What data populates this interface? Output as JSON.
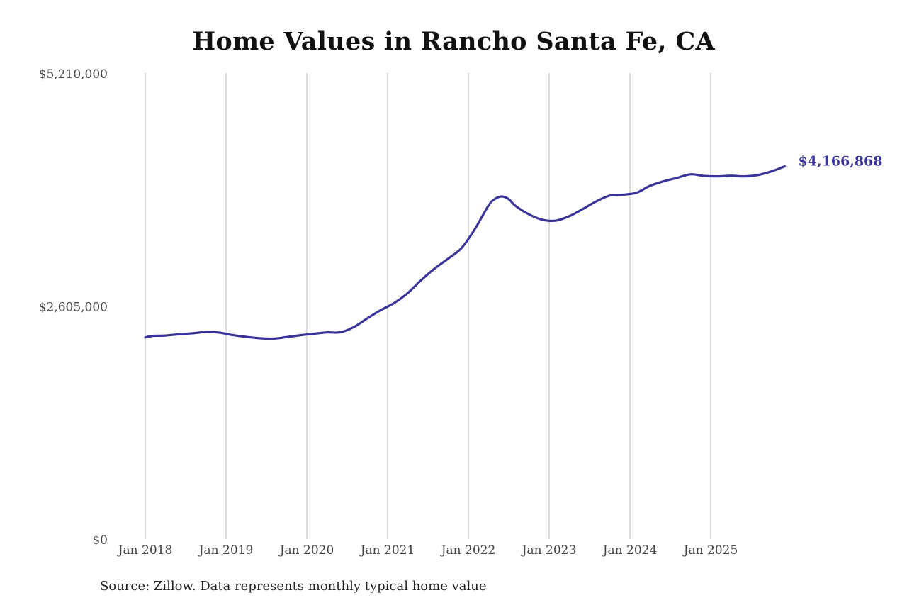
{
  "chart_data": {
    "type": "line",
    "title": "Home Values in Rancho Santa Fe, CA",
    "xlabel": "",
    "ylabel": "",
    "ylim": [
      0,
      5210000
    ],
    "y_ticks": [
      {
        "value": 0,
        "label": "$0"
      },
      {
        "value": 2605000,
        "label": "$2,605,000"
      },
      {
        "value": 5210000,
        "label": "$5,210,000"
      }
    ],
    "x_ticks": [
      {
        "year": 2018,
        "label": "Jan 2018"
      },
      {
        "year": 2019,
        "label": "Jan 2019"
      },
      {
        "year": 2020,
        "label": "Jan 2020"
      },
      {
        "year": 2021,
        "label": "Jan 2021"
      },
      {
        "year": 2022,
        "label": "Jan 2022"
      },
      {
        "year": 2023,
        "label": "Jan 2023"
      },
      {
        "year": 2024,
        "label": "Jan 2024"
      },
      {
        "year": 2025,
        "label": "Jan 2025"
      }
    ],
    "xlim": [
      "2018-01",
      "2025-12"
    ],
    "grid": "vertical",
    "series_color": "#3a3399",
    "series": [
      {
        "x": [
          "2018-01",
          "2018-02",
          "2018-04",
          "2018-06",
          "2018-08",
          "2018-10",
          "2018-12",
          "2019-02",
          "2019-04",
          "2019-06",
          "2019-08",
          "2019-10",
          "2019-12",
          "2020-02",
          "2020-04",
          "2020-06",
          "2020-08",
          "2020-10",
          "2020-12",
          "2021-02",
          "2021-04",
          "2021-06",
          "2021-08",
          "2021-10",
          "2021-12",
          "2022-02",
          "2022-04",
          "2022-05",
          "2022-06",
          "2022-07",
          "2022-08",
          "2022-10",
          "2022-12",
          "2023-02",
          "2023-04",
          "2023-06",
          "2023-08",
          "2023-10",
          "2023-12",
          "2024-02",
          "2024-04",
          "2024-06",
          "2024-08",
          "2024-10",
          "2024-12",
          "2025-02",
          "2025-04",
          "2025-06",
          "2025-08",
          "2025-10",
          "2025-12"
        ],
        "values": [
          2253000,
          2270000,
          2275000,
          2290000,
          2300000,
          2315000,
          2308000,
          2280000,
          2260000,
          2245000,
          2240000,
          2258000,
          2278000,
          2295000,
          2310000,
          2312000,
          2370000,
          2468000,
          2560000,
          2640000,
          2750000,
          2895000,
          3025000,
          3135000,
          3255000,
          3470000,
          3730000,
          3805000,
          3830000,
          3800000,
          3725000,
          3630000,
          3570000,
          3560000,
          3610000,
          3690000,
          3775000,
          3840000,
          3850000,
          3873000,
          3950000,
          4000000,
          4038000,
          4078000,
          4060000,
          4055000,
          4062000,
          4055000,
          4070000,
          4110000,
          4166868
        ]
      }
    ],
    "end_label": "$4,166,868",
    "source": "Source: Zillow. Data represents monthly typical home value"
  }
}
